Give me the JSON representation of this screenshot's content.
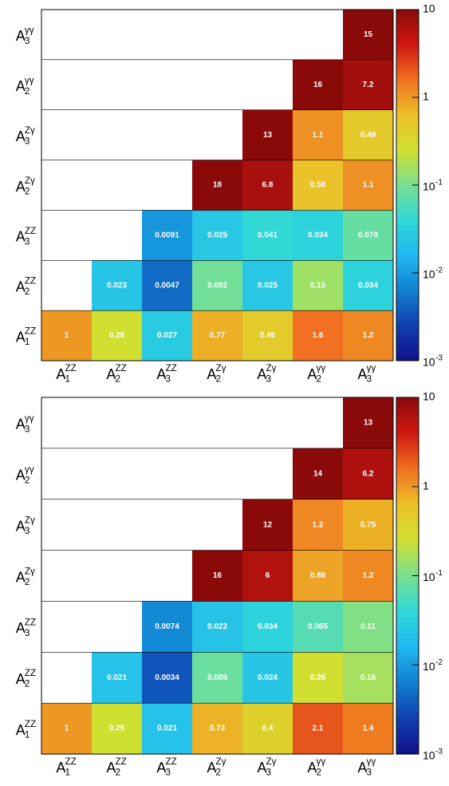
{
  "chart_data": [
    {
      "type": "heatmap",
      "categories": [
        {
          "base": "A",
          "sub": "1",
          "sup": "ZZ"
        },
        {
          "base": "A",
          "sub": "2",
          "sup": "ZZ"
        },
        {
          "base": "A",
          "sub": "3",
          "sup": "ZZ"
        },
        {
          "base": "A",
          "sub": "2",
          "sup": "Zγ"
        },
        {
          "base": "A",
          "sub": "3",
          "sup": "Zγ"
        },
        {
          "base": "A",
          "sub": "2",
          "sup": "γγ"
        },
        {
          "base": "A",
          "sub": "3",
          "sup": "γγ"
        }
      ],
      "z": [
        [
          1,
          0.26,
          0.027,
          0.77,
          0.46,
          1.6,
          1.2
        ],
        [
          null,
          0.023,
          0.0047,
          0.092,
          0.025,
          0.15,
          0.034
        ],
        [
          null,
          null,
          0.0091,
          0.025,
          0.041,
          0.034,
          0.079
        ],
        [
          null,
          null,
          null,
          18,
          6.8,
          0.58,
          1.1
        ],
        [
          null,
          null,
          null,
          null,
          13,
          1.1,
          0.49
        ],
        [
          null,
          null,
          null,
          null,
          null,
          16,
          7.2
        ],
        [
          null,
          null,
          null,
          null,
          null,
          null,
          15
        ]
      ],
      "zlim": [
        0.001,
        10
      ],
      "zlog": true,
      "zticks": [
        {
          "value": 0.001,
          "label": {
            "base": "10",
            "sup": "-3"
          }
        },
        {
          "value": 0.01,
          "label": {
            "base": "10",
            "sup": "-2"
          }
        },
        {
          "value": 0.1,
          "label": {
            "base": "10",
            "sup": "-1"
          }
        },
        1,
        10
      ],
      "colormap": [
        "#10108a",
        "#1040b0",
        "#1080d0",
        "#20b8f0",
        "#30d8d8",
        "#78e090",
        "#d0e030",
        "#ecc028",
        "#f07020",
        "#d01810",
        "#8a0a0a"
      ]
    },
    {
      "type": "heatmap",
      "categories": [
        {
          "base": "A",
          "sub": "1",
          "sup": "ZZ"
        },
        {
          "base": "A",
          "sub": "2",
          "sup": "ZZ"
        },
        {
          "base": "A",
          "sub": "3",
          "sup": "ZZ"
        },
        {
          "base": "A",
          "sub": "2",
          "sup": "Zγ"
        },
        {
          "base": "A",
          "sub": "3",
          "sup": "Zγ"
        },
        {
          "base": "A",
          "sub": "2",
          "sup": "γγ"
        },
        {
          "base": "A",
          "sub": "3",
          "sup": "γγ"
        }
      ],
      "z": [
        [
          1,
          0.25,
          0.021,
          0.73,
          0.4,
          2.1,
          1.4
        ],
        [
          null,
          0.021,
          0.0034,
          0.085,
          0.024,
          0.26,
          0.16
        ],
        [
          null,
          null,
          0.0074,
          0.022,
          0.034,
          0.065,
          0.11
        ],
        [
          null,
          null,
          null,
          16,
          6,
          0.88,
          1.2
        ],
        [
          null,
          null,
          null,
          null,
          12,
          1.2,
          0.75
        ],
        [
          null,
          null,
          null,
          null,
          null,
          14,
          6.2
        ],
        [
          null,
          null,
          null,
          null,
          null,
          null,
          13
        ]
      ],
      "zlim": [
        0.001,
        10
      ],
      "zlog": true,
      "zticks": [
        {
          "value": 0.001,
          "label": {
            "base": "10",
            "sup": "-3"
          }
        },
        {
          "value": 0.01,
          "label": {
            "base": "10",
            "sup": "-2"
          }
        },
        {
          "value": 0.1,
          "label": {
            "base": "10",
            "sup": "-1"
          }
        },
        1,
        10
      ],
      "colormap": [
        "#10108a",
        "#1040b0",
        "#1080d0",
        "#20b8f0",
        "#30d8d8",
        "#78e090",
        "#d0e030",
        "#ecc028",
        "#f07020",
        "#d01810",
        "#8a0a0a"
      ]
    }
  ]
}
